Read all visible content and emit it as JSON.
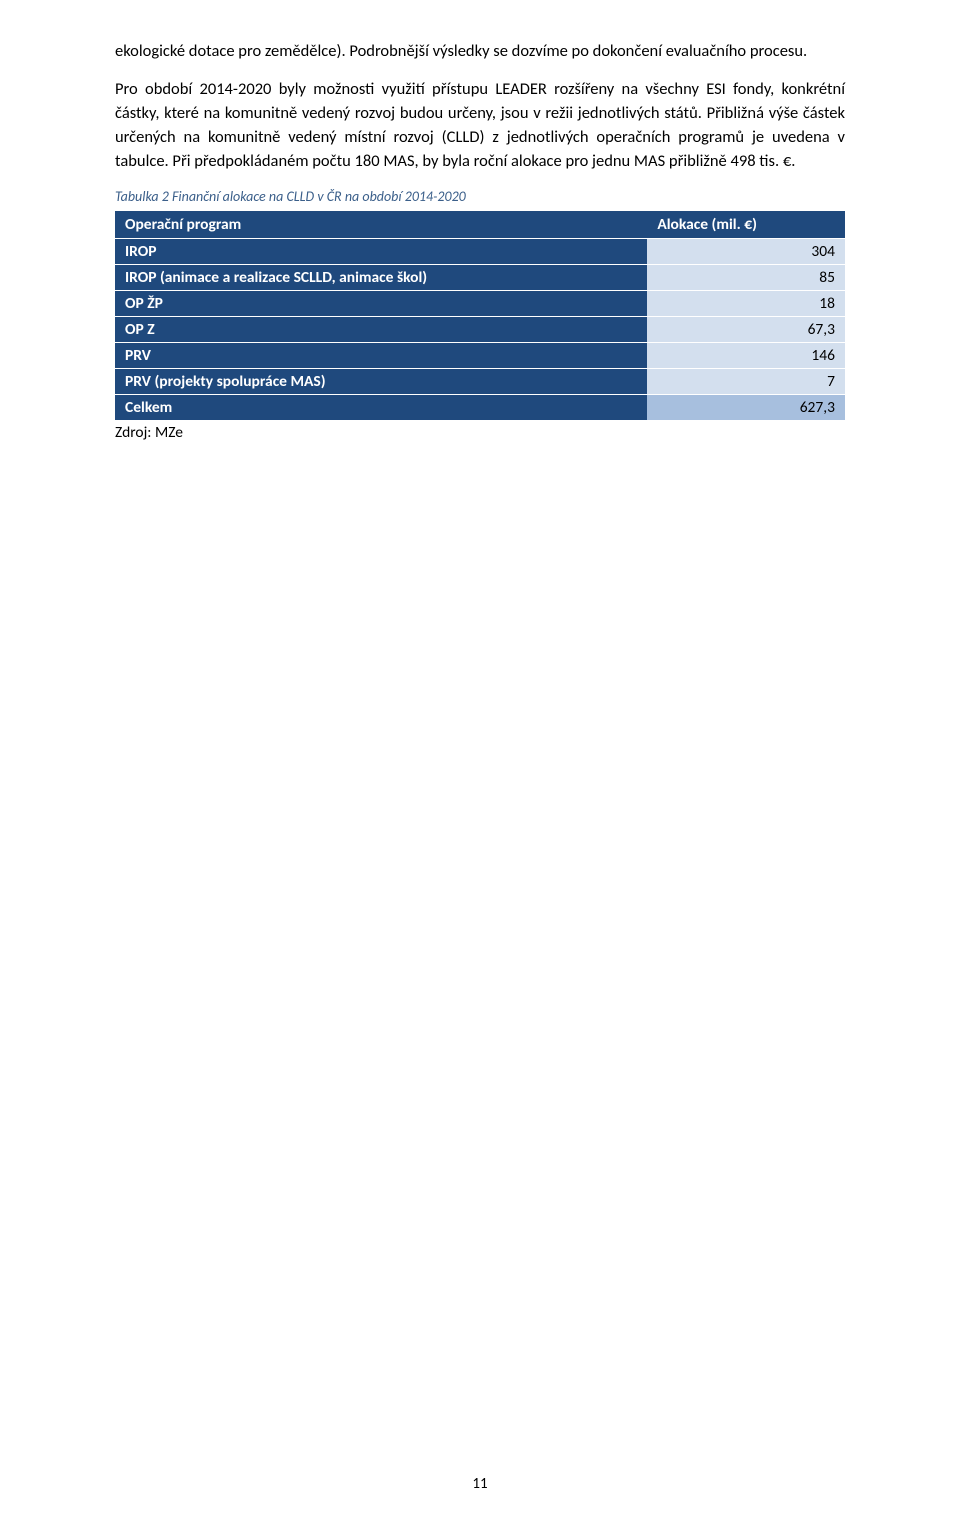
{
  "paragraphs": {
    "p1": "ekologické dotace pro zemědělce). Podrobnější výsledky se dozvíme po dokončení evaluačního procesu.",
    "p2": "Pro období 2014-2020 byly možnosti využití přístupu LEADER rozšířeny na všechny ESI fondy, konkrétní částky, které na komunitně vedený rozvoj budou určeny, jsou v režii jednotlivých států. Přibližná výše částek určených na komunitně vedený místní rozvoj (CLLD) z jednotlivých operačních programů je uvedena v tabulce. Při předpokládaném počtu 180 MAS, by byla roční alokace pro jednu MAS přibližně 498 tis. €."
  },
  "table": {
    "caption": "Tabulka 2 Finanční alokace na CLLD v ČR na období 2014-2020",
    "headers": {
      "program": "Operační program",
      "amount": "Alokace (mil. €)"
    },
    "header_bg": "#1f497d",
    "header_color": "#ffffff",
    "label_bg": "#1f497d",
    "label_color": "#ffffff",
    "amount_bg": "#d3dfee",
    "amount_color": "#000000",
    "total_amount_bg": "#a7bfde",
    "rows": [
      {
        "label": "IROP",
        "amount": "304"
      },
      {
        "label": "IROP (animace a realizace SCLLD, animace škol)",
        "amount": "85"
      },
      {
        "label": "OP ŽP",
        "amount": "18"
      },
      {
        "label": "OP Z",
        "amount": "67,3"
      },
      {
        "label": "PRV",
        "amount": "146"
      },
      {
        "label": "PRV (projekty spolupráce MAS)",
        "amount": "7"
      }
    ],
    "total": {
      "label": "Celkem",
      "amount": "627,3"
    },
    "source": "Zdroj: MZe"
  },
  "page_number": "11"
}
